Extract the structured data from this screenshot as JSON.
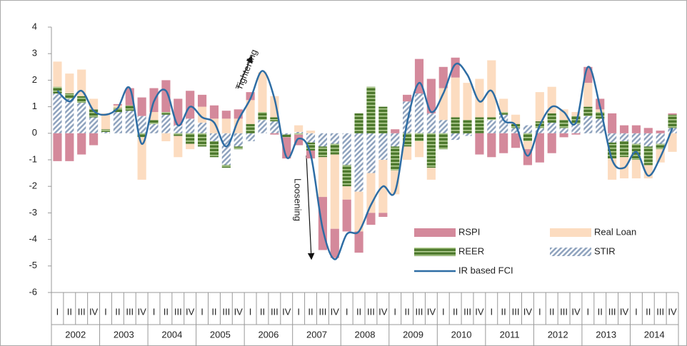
{
  "chart_data": {
    "type": "stacked-bar-line",
    "categories": [
      "I",
      "II",
      "III",
      "IV",
      "I",
      "II",
      "III",
      "IV",
      "I",
      "II",
      "III",
      "IV",
      "I",
      "II",
      "III",
      "IV",
      "I",
      "II",
      "III",
      "IV",
      "I",
      "II",
      "III",
      "IV",
      "I",
      "II",
      "III",
      "IV",
      "I",
      "II",
      "III",
      "IV",
      "I",
      "II",
      "III",
      "IV",
      "I",
      "II",
      "III",
      "IV",
      "I",
      "II",
      "III",
      "IV",
      "I",
      "II",
      "III",
      "IV",
      "I",
      "II",
      "III",
      "IV"
    ],
    "years": [
      "2002",
      "2003",
      "2004",
      "2005",
      "2006",
      "2007",
      "2008",
      "2009",
      "2010",
      "2011",
      "2012",
      "2013",
      "2014"
    ],
    "series": [
      {
        "name": "RSPI",
        "color": "#d4899b",
        "fill_style": "solid",
        "values": [
          -1.05,
          -1.05,
          -0.8,
          -0.45,
          0,
          0.05,
          0.65,
          0.7,
          0.9,
          1.2,
          1.0,
          1.05,
          0.45,
          0.5,
          0.3,
          0.35,
          0.3,
          0,
          -0.05,
          -0.8,
          -0.4,
          -0.3,
          -2.0,
          -1.1,
          -1.2,
          -0.8,
          -0.45,
          -0.15,
          0.15,
          0.25,
          1.3,
          1.3,
          0.8,
          0.75,
          0,
          -0.8,
          -0.9,
          -0.75,
          -0.55,
          -0.6,
          -1.1,
          -0.75,
          -0.15,
          -0.05,
          0.6,
          0.4,
          0.75,
          0.3,
          0.3,
          0.2,
          0.1,
          0.05
        ]
      },
      {
        "name": "Real Loan",
        "color": "#fcdcc0",
        "fill_style": "solid",
        "values": [
          0.95,
          0.75,
          1.0,
          0.4,
          0.6,
          0.1,
          0,
          -1.6,
          0.3,
          -0.3,
          -0.8,
          -0.2,
          0.6,
          0.55,
          0.55,
          0.55,
          0.9,
          1.5,
          0.8,
          0,
          0.25,
          0.1,
          -1.5,
          -2.8,
          -0.5,
          -1.5,
          -1.5,
          -2.0,
          -0.9,
          -0.5,
          -0.6,
          -0.45,
          1.2,
          1.5,
          1.4,
          1.45,
          2.15,
          0.5,
          0.35,
          -0.3,
          1.1,
          1.0,
          0.4,
          0.15,
          0.9,
          0.1,
          -0.8,
          -0.8,
          -0.7,
          -0.5,
          -0.5,
          -0.7
        ]
      },
      {
        "name": "REER",
        "color": "#4e7a2e",
        "fill_style": "striped",
        "values": [
          0.25,
          0.2,
          0.25,
          0.3,
          0.1,
          0.15,
          0.2,
          -0.15,
          0.15,
          0.1,
          -0.1,
          -0.4,
          -0.5,
          -0.6,
          -0.1,
          -0.1,
          0.35,
          0.3,
          0.15,
          -0.1,
          -0.05,
          -0.3,
          -0.4,
          -0.4,
          -0.8,
          0.75,
          1.75,
          1.0,
          -0.9,
          -0.5,
          -0.3,
          -1.3,
          -0.6,
          0.6,
          0.5,
          0.6,
          0.1,
          0.1,
          0.15,
          -0.3,
          0.25,
          0.35,
          0.3,
          0.3,
          0.35,
          0.25,
          -0.6,
          -0.6,
          -0.6,
          -0.7,
          -0.2,
          0.5
        ]
      },
      {
        "name": "STIR",
        "color": "#8fa3be",
        "fill_style": "hatched",
        "values": [
          1.5,
          1.3,
          1.15,
          0.6,
          0.05,
          0.8,
          0.85,
          0.65,
          0.35,
          0.7,
          0.3,
          0.55,
          0.4,
          -0.3,
          -1.2,
          -0.5,
          -0.3,
          0.5,
          0.45,
          -0.05,
          0.05,
          -0.35,
          -0.5,
          -0.4,
          -1.2,
          -2.2,
          -1.5,
          -1.0,
          -0.5,
          1.2,
          1.5,
          0.75,
          0.5,
          -0.25,
          -0.1,
          0,
          0.5,
          0.7,
          0.2,
          0.3,
          0.2,
          0.4,
          0.2,
          0.35,
          0.65,
          0.55,
          -0.35,
          -0.3,
          -0.4,
          -0.5,
          -0.4,
          0.2
        ]
      }
    ],
    "line": {
      "name": "IR based FCI",
      "color": "#2e6da4",
      "values": [
        1.6,
        1.2,
        1.6,
        0.85,
        0.7,
        0.95,
        1.7,
        -0.4,
        1.2,
        1.6,
        0.3,
        1.0,
        0.6,
        0.4,
        -0.5,
        0.5,
        1.3,
        2.35,
        1.3,
        -0.9,
        -0.2,
        -0.8,
        -3.6,
        -4.75,
        -3.8,
        -3.7,
        -2.7,
        -2.0,
        -2.2,
        0.4,
        1.9,
        0.8,
        1.5,
        2.6,
        2.2,
        1.2,
        1.6,
        0.5,
        0.3,
        -0.85,
        0.3,
        1.0,
        0.8,
        0.4,
        2.5,
        1.0,
        -1.0,
        -1.3,
        -0.7,
        -1.6,
        -0.9,
        0.2
      ]
    },
    "annotations": [
      "Tightening",
      "Loosening"
    ],
    "ylim": [
      -6,
      4
    ],
    "yticks": [
      -6,
      -5,
      -4,
      -3,
      -2,
      -1,
      0,
      1,
      2,
      3,
      4
    ],
    "grid": false
  }
}
